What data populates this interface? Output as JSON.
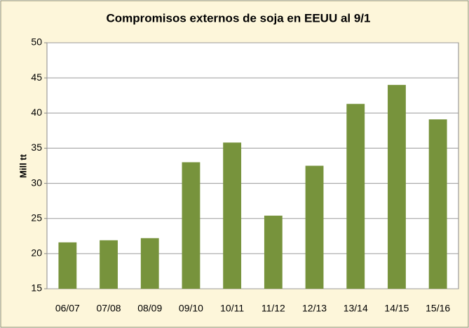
{
  "chart_data": {
    "type": "bar",
    "title": "Compromisos externos de soja en EEUU al 9/1",
    "y_label": "Mill tt",
    "categories": [
      "06/07",
      "07/08",
      "08/09",
      "09/10",
      "10/11",
      "11/12",
      "12/13",
      "13/14",
      "14/15",
      "15/16"
    ],
    "values": [
      21.6,
      21.9,
      22.2,
      33.0,
      35.8,
      25.4,
      32.5,
      41.3,
      44.0,
      39.1
    ],
    "color": "#77933c",
    "ylim": [
      15,
      50
    ],
    "yticks": [
      15,
      20,
      25,
      30,
      35,
      40,
      45,
      50
    ],
    "grid": true
  }
}
